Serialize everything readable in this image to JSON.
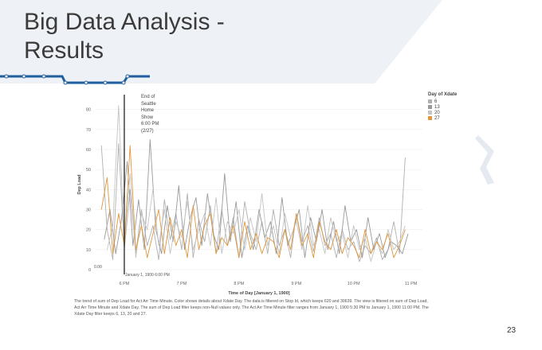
{
  "slide": {
    "title_line1": "Big Data Analysis -",
    "title_line2": "Results",
    "page_number": "23",
    "caption": "The trend of sum of Dep Load for Act Arr Time Minute.  Color shows details about Xdate Day. The data is filtered on Stop Id, which keeps 620 and 30639. The view is filtered on sum of Dep Load, Act Arr Time Minute and Xdate Day. The sum of Dep Load filter keeps non-Null values only. The Act Arr Time Minute filter ranges from January 1, 1900 5:30 PM to January 1, 1900 11:00 PM. The Xdate Day filter keeps 6, 13, 20 and 27.",
    "colors": {
      "accent_blue": "#1f5fa0",
      "bg_shape": "#eef1f5"
    }
  },
  "annotation": {
    "lines": [
      "End of",
      "Seattle",
      "Home",
      "Show",
      "6:00 PM",
      "(2/27)"
    ],
    "ref_label": "January 1, 1900 6:00 PM",
    "zero_label": "0.00"
  },
  "chart_data": {
    "type": "line",
    "xlabel": "Time of Day [January 1, 1900]",
    "ylabel": "Dep Load",
    "xlim": [
      17.5,
      23.2
    ],
    "ylim": [
      0,
      85
    ],
    "yticks": [
      0,
      10,
      20,
      30,
      40,
      50,
      60,
      70,
      80
    ],
    "xticks": [
      {
        "value": 18,
        "label": "6 PM"
      },
      {
        "value": 19,
        "label": "7 PM"
      },
      {
        "value": 20,
        "label": "8 PM"
      },
      {
        "value": 21,
        "label": "9 PM"
      },
      {
        "value": 22,
        "label": "10 PM"
      },
      {
        "value": 23,
        "label": "11 PM"
      }
    ],
    "reference_line_x": 18.0,
    "legend_title": "Day of Xdate",
    "legend_placement": "top-right",
    "series": [
      {
        "name": "6",
        "color": "#b0b0b0",
        "x": [
          17.6,
          17.7,
          17.8,
          17.9,
          18.0,
          18.1,
          18.2,
          18.3,
          18.4,
          18.5,
          18.6,
          18.7,
          18.8,
          18.9,
          19.0,
          19.1,
          19.2,
          19.3,
          19.4,
          19.5,
          19.6,
          19.7,
          19.8,
          19.9,
          20.0,
          20.1,
          20.2,
          20.3,
          20.4,
          20.5,
          20.6,
          20.7,
          20.8,
          20.9,
          21.0,
          21.1,
          21.2,
          21.3,
          21.4,
          21.5,
          21.6,
          21.7,
          21.8,
          21.9,
          22.0,
          22.1,
          22.2,
          22.3,
          22.4,
          22.5,
          22.6,
          22.7,
          22.8,
          22.9
        ],
        "y": [
          62,
          20,
          5,
          63,
          10,
          40,
          8,
          30,
          12,
          22,
          5,
          35,
          15,
          28,
          10,
          38,
          6,
          25,
          14,
          32,
          8,
          30,
          12,
          26,
          6,
          34,
          18,
          10,
          24,
          8,
          30,
          12,
          20,
          6,
          28,
          14,
          22,
          9,
          26,
          12,
          18,
          6,
          20,
          10,
          14,
          4,
          12,
          8,
          16,
          5,
          10,
          24,
          8,
          56
        ]
      },
      {
        "name": "13",
        "color": "#9a9a9a",
        "x": [
          17.65,
          17.75,
          17.85,
          17.95,
          18.05,
          18.15,
          18.25,
          18.35,
          18.45,
          18.55,
          18.65,
          18.75,
          18.85,
          18.95,
          19.05,
          19.15,
          19.25,
          19.35,
          19.45,
          19.55,
          19.65,
          19.75,
          19.85,
          19.95,
          20.05,
          20.15,
          20.25,
          20.35,
          20.45,
          20.55,
          20.65,
          20.75,
          20.85,
          20.95,
          21.05,
          21.15,
          21.25,
          21.35,
          21.45,
          21.55,
          21.65,
          21.75,
          21.85,
          21.95,
          22.05,
          22.15,
          22.25,
          22.35,
          22.45,
          22.55,
          22.65,
          22.75,
          22.85,
          22.95
        ],
        "y": [
          15,
          30,
          8,
          25,
          54,
          12,
          35,
          10,
          65,
          20,
          8,
          32,
          14,
          42,
          10,
          26,
          36,
          12,
          38,
          18,
          10,
          48,
          14,
          34,
          6,
          22,
          10,
          30,
          16,
          24,
          8,
          36,
          12,
          20,
          30,
          6,
          26,
          14,
          30,
          10,
          24,
          8,
          32,
          14,
          20,
          6,
          26,
          10,
          18,
          6,
          14,
          12,
          8,
          18
        ]
      },
      {
        "name": "20",
        "color": "#c4c4c4",
        "x": [
          17.7,
          17.8,
          17.9,
          18.0,
          18.1,
          18.2,
          18.3,
          18.4,
          18.5,
          18.6,
          18.7,
          18.8,
          18.9,
          19.0,
          19.1,
          19.2,
          19.3,
          19.4,
          19.5,
          19.6,
          19.7,
          19.8,
          19.9,
          20.0,
          20.1,
          20.2,
          20.3,
          20.4,
          20.5,
          20.6,
          20.7,
          20.8,
          20.9,
          21.0,
          21.1,
          21.2,
          21.3,
          21.4,
          21.5,
          21.6,
          21.7,
          21.8,
          21.9,
          22.0,
          22.1,
          22.2,
          22.3,
          22.4,
          22.5,
          22.6,
          22.7,
          22.8,
          22.9
        ],
        "y": [
          10,
          22,
          82,
          14,
          48,
          6,
          28,
          20,
          40,
          12,
          30,
          8,
          24,
          16,
          34,
          10,
          20,
          28,
          12,
          36,
          8,
          24,
          18,
          30,
          10,
          26,
          14,
          38,
          12,
          22,
          8,
          28,
          16,
          24,
          10,
          32,
          12,
          20,
          8,
          26,
          14,
          18,
          6,
          22,
          10,
          16,
          4,
          14,
          8,
          20,
          10,
          14,
          22
        ]
      },
      {
        "name": "27",
        "color": "#e0963a",
        "x": [
          17.6,
          17.7,
          17.8,
          17.9,
          18.0,
          18.1,
          18.2,
          18.3,
          18.4,
          18.5,
          18.6,
          18.7,
          18.8,
          18.9,
          19.0,
          19.1,
          19.2,
          19.3,
          19.4,
          19.5,
          19.6,
          19.7,
          19.8,
          19.9,
          20.0,
          20.1,
          20.2,
          20.3,
          20.4,
          20.5,
          20.6,
          20.7,
          20.8,
          20.9,
          21.0,
          21.1,
          21.2,
          21.3,
          21.4,
          21.5,
          21.6,
          21.7,
          21.8,
          21.9,
          22.0,
          22.1,
          22.2,
          22.3,
          22.4,
          22.5,
          22.6,
          22.7,
          22.8,
          22.9
        ],
        "y": [
          30,
          46,
          8,
          28,
          12,
          62,
          10,
          22,
          6,
          18,
          30,
          8,
          26,
          12,
          20,
          6,
          32,
          10,
          22,
          28,
          8,
          16,
          12,
          22,
          6,
          24,
          10,
          18,
          8,
          16,
          14,
          6,
          20,
          10,
          28,
          12,
          18,
          6,
          24,
          14,
          10,
          20,
          8,
          16,
          12,
          6,
          20,
          8,
          14,
          10,
          18,
          6,
          12,
          20
        ]
      }
    ]
  }
}
